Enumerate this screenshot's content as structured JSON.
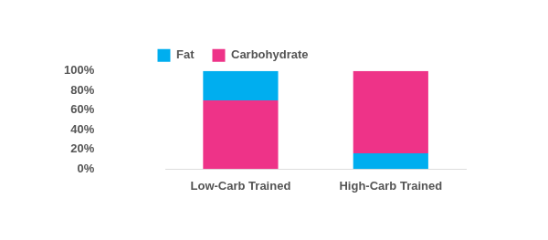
{
  "chart_data": {
    "type": "bar",
    "stacked": true,
    "legend": "top",
    "grid": false,
    "categories": [
      "Low-Carb Trained",
      "High-Carb Trained"
    ],
    "series": [
      {
        "name": "Fat",
        "color": "#00aeef",
        "values": [
          30,
          16
        ]
      },
      {
        "name": "Carbohydrate",
        "color": "#ee3388",
        "values": [
          70,
          84
        ]
      }
    ],
    "ylim": [
      0,
      100
    ],
    "yticks": [
      {
        "value": 0,
        "label": "0%"
      },
      {
        "value": 20,
        "label": "20%"
      },
      {
        "value": 40,
        "label": "40%"
      },
      {
        "value": 60,
        "label": "60%"
      },
      {
        "value": 80,
        "label": "80%"
      },
      {
        "value": 100,
        "label": "100%"
      }
    ]
  }
}
